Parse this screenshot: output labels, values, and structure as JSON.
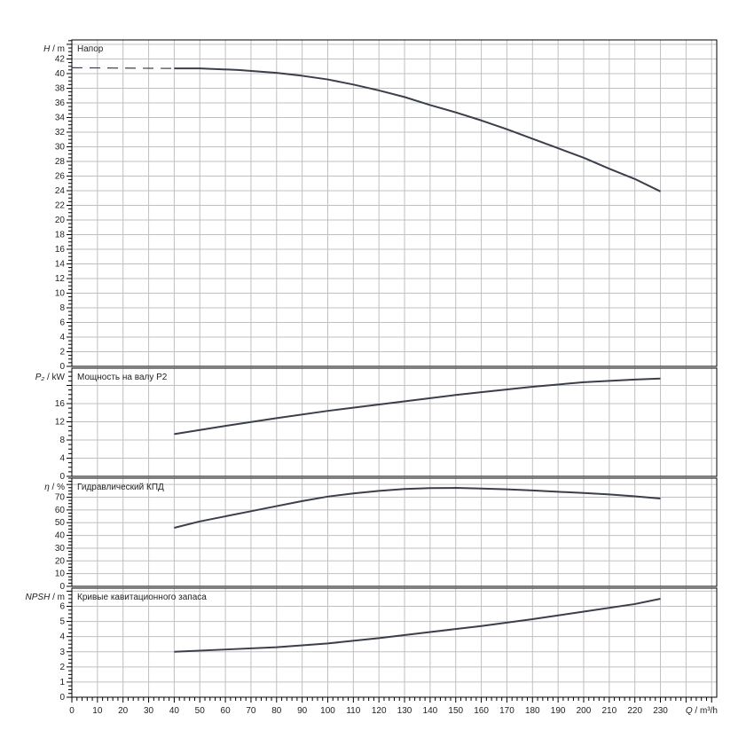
{
  "chart_data": [
    {
      "type": "line",
      "title": "Напор",
      "ylabel_symbol": "H",
      "ylabel_unit": " / m",
      "ylim": [
        0,
        44.6
      ],
      "tick_step": 2,
      "label_step": 2,
      "x": [
        0,
        40
      ],
      "dashed": [
        [
          0,
          40.8
        ],
        [
          40,
          40.7
        ]
      ],
      "points": [
        [
          40,
          40.7
        ],
        [
          50,
          40.7
        ],
        [
          65,
          40.5
        ],
        [
          80,
          40.1
        ],
        [
          90,
          39.7
        ],
        [
          100,
          39.2
        ],
        [
          110,
          38.5
        ],
        [
          120,
          37.7
        ],
        [
          130,
          36.8
        ],
        [
          140,
          35.7
        ],
        [
          150,
          34.7
        ],
        [
          160,
          33.6
        ],
        [
          170,
          32.4
        ],
        [
          180,
          31.1
        ],
        [
          190,
          29.8
        ],
        [
          200,
          28.5
        ],
        [
          210,
          27.0
        ],
        [
          220,
          25.6
        ],
        [
          230,
          23.9
        ]
      ]
    },
    {
      "type": "line",
      "title": "Мощность на валу P2",
      "ylabel_symbol": "P₂",
      "ylabel_unit": " / kW",
      "ylim": [
        0,
        23.8
      ],
      "tick_step": 4,
      "label_step": 4,
      "label_max": 16,
      "points": [
        [
          40,
          9.3
        ],
        [
          60,
          11.1
        ],
        [
          80,
          12.8
        ],
        [
          100,
          14.4
        ],
        [
          120,
          15.8
        ],
        [
          140,
          17.2
        ],
        [
          150,
          17.9
        ],
        [
          160,
          18.5
        ],
        [
          180,
          19.7
        ],
        [
          200,
          20.7
        ],
        [
          220,
          21.3
        ],
        [
          230,
          21.5
        ]
      ]
    },
    {
      "type": "line",
      "title": "Гидравлический КПД",
      "ylabel_symbol": "η",
      "ylabel_unit": " / %",
      "ylim": [
        0,
        85
      ],
      "tick_step": 10,
      "label_step": 10,
      "points": [
        [
          40,
          46
        ],
        [
          50,
          51
        ],
        [
          60,
          55
        ],
        [
          70,
          59
        ],
        [
          80,
          63
        ],
        [
          90,
          67
        ],
        [
          100,
          70.5
        ],
        [
          110,
          73
        ],
        [
          120,
          75
        ],
        [
          130,
          76.5
        ],
        [
          140,
          77.2
        ],
        [
          150,
          77.3
        ],
        [
          160,
          76.8
        ],
        [
          170,
          76.2
        ],
        [
          180,
          75.3
        ],
        [
          190,
          74.3
        ],
        [
          200,
          73.3
        ],
        [
          210,
          72.2
        ],
        [
          220,
          70.7
        ],
        [
          230,
          69
        ]
      ]
    },
    {
      "type": "line",
      "title": "Кривые кавитационного запаса",
      "ylabel_symbol": "NPSH",
      "ylabel_unit": " / m",
      "ylim": [
        0,
        7.2
      ],
      "tick_step": 1,
      "label_step": 1,
      "points": [
        [
          40,
          3.0
        ],
        [
          60,
          3.15
        ],
        [
          80,
          3.3
        ],
        [
          100,
          3.55
        ],
        [
          120,
          3.9
        ],
        [
          140,
          4.3
        ],
        [
          160,
          4.7
        ],
        [
          180,
          5.15
        ],
        [
          200,
          5.65
        ],
        [
          220,
          6.15
        ],
        [
          230,
          6.5
        ]
      ]
    }
  ],
  "x_axis": {
    "label_symbol": "Q",
    "label_unit": " / m³/h",
    "xlim": [
      0,
      252
    ],
    "tick_labels": [
      "0",
      "10",
      "20",
      "30",
      "40",
      "50",
      "60",
      "70",
      "80",
      "90",
      "100",
      "110",
      "120",
      "130",
      "140",
      "150",
      "160",
      "170",
      "180",
      "190",
      "200",
      "210",
      "220",
      "230"
    ]
  },
  "colors": {
    "curve": "#3a3f4a",
    "grid": "#c0c0c0",
    "axis": "#000000"
  }
}
